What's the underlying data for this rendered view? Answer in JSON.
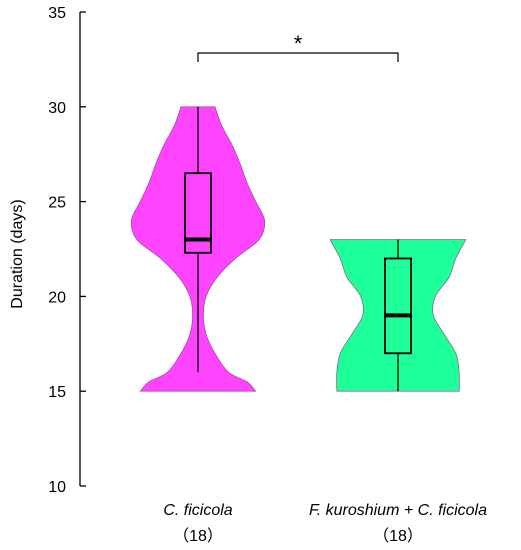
{
  "chart_data": {
    "type": "violin",
    "ylabel": "Duration (days)",
    "ylim": [
      10,
      35
    ],
    "yticks": [
      10,
      15,
      20,
      25,
      30,
      35
    ],
    "categories": [
      {
        "name": "C. ficicola",
        "n_label": "（18）",
        "color": "#ff44ff",
        "min": 16,
        "q1": 22.3,
        "median": 23,
        "q3": 26.5,
        "max": 30,
        "violin_min": 15,
        "violin_max": 30,
        "density": [
          [
            15,
            0.85
          ],
          [
            15.5,
            0.72
          ],
          [
            16,
            0.45
          ],
          [
            17,
            0.25
          ],
          [
            18,
            0.12
          ],
          [
            19,
            0.08
          ],
          [
            20,
            0.12
          ],
          [
            21,
            0.28
          ],
          [
            22,
            0.55
          ],
          [
            23,
            0.9
          ],
          [
            24,
            0.98
          ],
          [
            25,
            0.85
          ],
          [
            26,
            0.72
          ],
          [
            27,
            0.62
          ],
          [
            28,
            0.5
          ],
          [
            29,
            0.35
          ],
          [
            30,
            0.25
          ]
        ]
      },
      {
        "name": "F. kuroshium + C. ficicola",
        "n_label": "（18）",
        "color": "#1dff99",
        "min": 15,
        "q1": 17,
        "median": 19,
        "q3": 22,
        "max": 23,
        "violin_min": 15,
        "violin_max": 23,
        "density": [
          [
            15,
            0.9
          ],
          [
            16,
            0.9
          ],
          [
            17,
            0.85
          ],
          [
            18,
            0.68
          ],
          [
            19,
            0.52
          ],
          [
            20,
            0.55
          ],
          [
            21,
            0.75
          ],
          [
            22,
            0.85
          ],
          [
            23,
            1.0
          ]
        ]
      }
    ],
    "annotation": {
      "text": "*",
      "between": [
        0,
        1
      ]
    }
  }
}
